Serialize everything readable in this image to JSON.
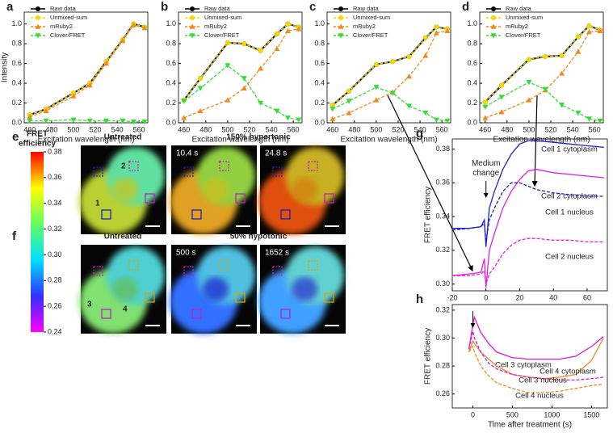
{
  "chart_data": [
    {
      "type": "line",
      "panel": "a",
      "xlabel": "Excitation wavelength (nm)",
      "ylabel": "Intensity",
      "x": [
        460,
        475,
        500,
        515,
        530,
        545,
        555,
        565
      ],
      "xlim": [
        455,
        568
      ],
      "xticks": [
        460,
        480,
        500,
        520,
        540,
        560
      ],
      "ylim": [
        0,
        1.12
      ],
      "yticks": [
        {
          "value": 0,
          "label": "0.0"
        },
        0.2,
        0.4,
        0.6,
        0.8,
        {
          "value": 1,
          "label": "1.0"
        }
      ],
      "series": [
        {
          "name": "Raw data",
          "color": "#000000",
          "marker": "circle",
          "dashed": false,
          "values": [
            0.08,
            0.14,
            0.3,
            0.4,
            0.62,
            0.84,
            1.0,
            0.97
          ]
        },
        {
          "name": "Unmixed-sum",
          "color": "#f5d800",
          "marker": "circle",
          "dashed": true,
          "values": [
            0.08,
            0.14,
            0.3,
            0.4,
            0.62,
            0.84,
            1.0,
            0.97
          ]
        },
        {
          "name": "mRuby2",
          "color": "#f08a1c",
          "marker": "triangle-up",
          "dashed": true,
          "values": [
            0.06,
            0.12,
            0.27,
            0.38,
            0.6,
            0.83,
            0.99,
            0.96
          ]
        },
        {
          "name": "Clover/FRET",
          "color": "#33dd33",
          "marker": "triangle-down",
          "dashed": true,
          "values": [
            0.02,
            0.02,
            0.03,
            0.02,
            0.02,
            0.02,
            0.01,
            0.01
          ]
        }
      ]
    },
    {
      "type": "line",
      "panel": "b",
      "xlabel": "Excitation wavelength (nm)",
      "x": [
        460,
        475,
        500,
        515,
        530,
        545,
        555,
        565
      ],
      "xlim": [
        455,
        568
      ],
      "xticks": [
        460,
        480,
        500,
        520,
        540,
        560
      ],
      "ylim": [
        0,
        1.12
      ],
      "yticks": [
        {
          "value": 0,
          "label": "0.0"
        },
        0.2,
        0.4,
        0.6,
        0.8,
        {
          "value": 1,
          "label": "1.0"
        }
      ],
      "series": [
        {
          "name": "Raw data",
          "color": "#000000",
          "marker": "circle",
          "dashed": false,
          "values": [
            0.23,
            0.45,
            0.81,
            0.8,
            0.73,
            0.9,
            1.0,
            0.97
          ]
        },
        {
          "name": "Unmixed-sum",
          "color": "#f5d800",
          "marker": "circle",
          "dashed": true,
          "values": [
            0.23,
            0.45,
            0.81,
            0.8,
            0.73,
            0.9,
            1.0,
            0.97
          ]
        },
        {
          "name": "mRuby2",
          "color": "#f08a1c",
          "marker": "triangle-up",
          "dashed": true,
          "values": [
            0.05,
            0.12,
            0.23,
            0.35,
            0.55,
            0.75,
            0.93,
            0.95
          ]
        },
        {
          "name": "Clover/FRET",
          "color": "#33dd33",
          "marker": "triangle-down",
          "dashed": true,
          "values": [
            0.22,
            0.35,
            0.58,
            0.45,
            0.2,
            0.12,
            0.05,
            0.03
          ]
        }
      ]
    },
    {
      "type": "line",
      "panel": "c",
      "xlabel": "Excitation wavelength (nm)",
      "x": [
        460,
        475,
        500,
        515,
        530,
        545,
        555,
        565
      ],
      "xlim": [
        455,
        568
      ],
      "xticks": [
        460,
        480,
        500,
        520,
        540,
        560
      ],
      "ylim": [
        0,
        1.12
      ],
      "yticks": [
        {
          "value": 0,
          "label": "0.0"
        },
        0.2,
        0.4,
        0.6,
        0.8,
        {
          "value": 1,
          "label": "1.0"
        }
      ],
      "series": [
        {
          "name": "Raw data",
          "color": "#000000",
          "marker": "circle",
          "dashed": false,
          "values": [
            0.18,
            0.32,
            0.59,
            0.62,
            0.67,
            0.86,
            0.97,
            0.95
          ]
        },
        {
          "name": "Unmixed-sum",
          "color": "#f5d800",
          "marker": "circle",
          "dashed": true,
          "values": [
            0.18,
            0.32,
            0.59,
            0.62,
            0.67,
            0.86,
            0.97,
            0.95
          ]
        },
        {
          "name": "mRuby2",
          "color": "#f08a1c",
          "marker": "triangle-up",
          "dashed": true,
          "values": [
            0.04,
            0.1,
            0.23,
            0.31,
            0.47,
            0.68,
            0.91,
            0.93
          ]
        },
        {
          "name": "Clover/FRET",
          "color": "#33dd33",
          "marker": "triangle-down",
          "dashed": true,
          "values": [
            0.14,
            0.22,
            0.36,
            0.3,
            0.17,
            0.1,
            0.03,
            0.02
          ]
        }
      ]
    },
    {
      "type": "line",
      "panel": "d",
      "xlabel": "Excitation wavelength (nm)",
      "x": [
        460,
        475,
        500,
        515,
        530,
        545,
        555,
        565
      ],
      "xlim": [
        455,
        568
      ],
      "xticks": [
        460,
        480,
        500,
        520,
        540,
        560
      ],
      "ylim": [
        0,
        1.12
      ],
      "yticks": [
        {
          "value": 0,
          "label": "0.0"
        },
        0.2,
        0.4,
        0.6,
        0.8,
        {
          "value": 1,
          "label": "1.0"
        }
      ],
      "series": [
        {
          "name": "Raw data",
          "color": "#000000",
          "marker": "circle",
          "dashed": false,
          "values": [
            0.21,
            0.38,
            0.64,
            0.67,
            0.68,
            0.87,
            0.98,
            0.94
          ]
        },
        {
          "name": "Unmixed-sum",
          "color": "#f5d800",
          "marker": "circle",
          "dashed": true,
          "values": [
            0.21,
            0.38,
            0.64,
            0.67,
            0.68,
            0.87,
            0.98,
            0.94
          ]
        },
        {
          "name": "mRuby2",
          "color": "#f08a1c",
          "marker": "triangle-up",
          "dashed": true,
          "values": [
            0.05,
            0.11,
            0.23,
            0.33,
            0.5,
            0.72,
            0.92,
            0.93
          ]
        },
        {
          "name": "Clover/FRET",
          "color": "#33dd33",
          "marker": "triangle-down",
          "dashed": true,
          "values": [
            0.16,
            0.26,
            0.41,
            0.34,
            0.18,
            0.1,
            0.04,
            0.02
          ]
        }
      ]
    },
    {
      "type": "trace",
      "panel": "g",
      "ylabel": "FRET efficiency",
      "annotation": "Medium change",
      "x": [
        -20,
        -10,
        -3,
        -1,
        0,
        2,
        5,
        10,
        15,
        20,
        25,
        30,
        40,
        50,
        60,
        70
      ],
      "xlim": [
        -20,
        72
      ],
      "xticks": [
        -20,
        0,
        20,
        40,
        60
      ],
      "ylim": [
        0.296,
        0.386
      ],
      "yticks": [
        {
          "value": 0.3,
          "label": "0.30"
        },
        0.32,
        0.34,
        0.36,
        0.38
      ],
      "series": [
        {
          "name": "Cell 1 cytoplasm",
          "color": "#1f1fd0",
          "dashed": false,
          "values": [
            0.333,
            0.333,
            0.334,
            0.338,
            0.322,
            0.345,
            0.355,
            0.368,
            0.377,
            0.383,
            0.385,
            0.385,
            0.384,
            0.383,
            0.382,
            0.381
          ]
        },
        {
          "name": "Cell 2 cytoplasm",
          "color": "#e020e0",
          "dashed": false,
          "values": [
            0.305,
            0.306,
            0.307,
            0.315,
            0.298,
            0.32,
            0.33,
            0.345,
            0.355,
            0.362,
            0.367,
            0.368,
            0.366,
            0.365,
            0.364,
            0.363
          ]
        },
        {
          "name": "Cell 1 nucleus",
          "color": "#1f1fd0",
          "dashed": true,
          "values": [
            0.332,
            0.333,
            0.334,
            0.336,
            0.325,
            0.338,
            0.345,
            0.355,
            0.36,
            0.36,
            0.358,
            0.356,
            0.354,
            0.353,
            0.352,
            0.352
          ]
        },
        {
          "name": "Cell 2 nucleus",
          "color": "#e020e0",
          "dashed": true,
          "values": [
            0.305,
            0.305,
            0.306,
            0.308,
            0.3,
            0.306,
            0.31,
            0.318,
            0.323,
            0.326,
            0.327,
            0.327,
            0.326,
            0.326,
            0.325,
            0.325
          ]
        }
      ]
    },
    {
      "type": "trace",
      "panel": "h",
      "ylabel": "FRET efficiency",
      "xlabel": "Time after treatment (s)",
      "x": [
        -50,
        0,
        20,
        100,
        200,
        300,
        500,
        700,
        900,
        1100,
        1300,
        1500,
        1650
      ],
      "xlim": [
        -260,
        1700
      ],
      "xticks": [
        0,
        500,
        1000,
        1500
      ],
      "ylim": [
        0.25,
        0.324
      ],
      "yticks": [
        0.26,
        0.28,
        {
          "value": 0.3,
          "label": "0.30"
        },
        0.32
      ],
      "series": [
        {
          "name": "Cell 3 cytoplasm",
          "color": "#d81bd8",
          "dashed": false,
          "values": [
            0.292,
            0.31,
            0.315,
            0.304,
            0.296,
            0.29,
            0.286,
            0.285,
            0.285,
            0.285,
            0.287,
            0.294,
            0.301
          ]
        },
        {
          "name": "Cell 4 cytoplasm",
          "color": "#f08a1c",
          "dashed": false,
          "values": [
            0.29,
            0.298,
            0.296,
            0.29,
            0.285,
            0.28,
            0.274,
            0.272,
            0.271,
            0.272,
            0.274,
            0.284,
            0.3
          ]
        },
        {
          "name": "Cell 3 nucleus",
          "color": "#d81bd8",
          "dashed": true,
          "values": [
            0.292,
            0.305,
            0.3,
            0.29,
            0.282,
            0.278,
            0.274,
            0.272,
            0.271,
            0.27,
            0.27,
            0.271,
            0.272
          ]
        },
        {
          "name": "Cell 4 nucleus",
          "color": "#f08a1c",
          "dashed": true,
          "values": [
            0.29,
            0.294,
            0.29,
            0.28,
            0.273,
            0.268,
            0.264,
            0.261,
            0.261,
            0.262,
            0.264,
            0.266,
            0.267
          ]
        }
      ]
    }
  ],
  "images": {
    "e": {
      "label": "e",
      "left": "Untreated",
      "right": "150% hypertonic",
      "times": [
        "10.4 s",
        "24.8 s"
      ],
      "rois": [
        "1",
        "2"
      ]
    },
    "f": {
      "label": "f",
      "left": "Untreated",
      "right": "50% hypotonic",
      "times": [
        "500 s",
        "1652 s"
      ],
      "rois": [
        "3",
        "4"
      ]
    }
  },
  "colorbar": {
    "title": [
      "FRET",
      "efficiency"
    ],
    "ticks": [
      "0.38",
      "0.36",
      "0.34",
      "0.32",
      "0.30",
      "0.28",
      "0.26",
      "0.24"
    ]
  }
}
